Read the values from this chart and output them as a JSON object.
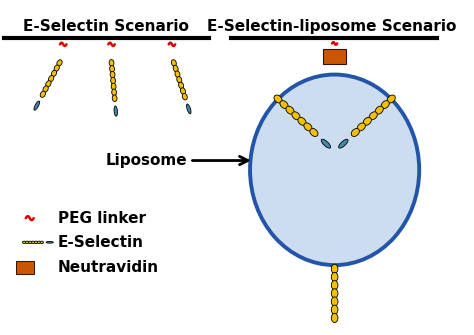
{
  "title_left": "E-Selectin Scenario",
  "title_right": "E-Selectin-liposome Scenario",
  "liposome_label": "Liposome",
  "legend_peg": "PEG linker",
  "legend_eselectin": "E-Selectin",
  "legend_neutravidin": "Neutravidin",
  "bg_color": "#ffffff",
  "liposome_fill": "#ccddf0",
  "liposome_edge": "#2255aa",
  "neutravidin_color": "#cc5500",
  "peg_color": "#dd0000",
  "eselectin_yellow": "#f5c000",
  "eselectin_tip": "#4488aa",
  "eselectin_edge": "#222200",
  "text_color": "#000000",
  "title_fontsize": 11,
  "label_fontsize": 10,
  "legend_fontsize": 10
}
